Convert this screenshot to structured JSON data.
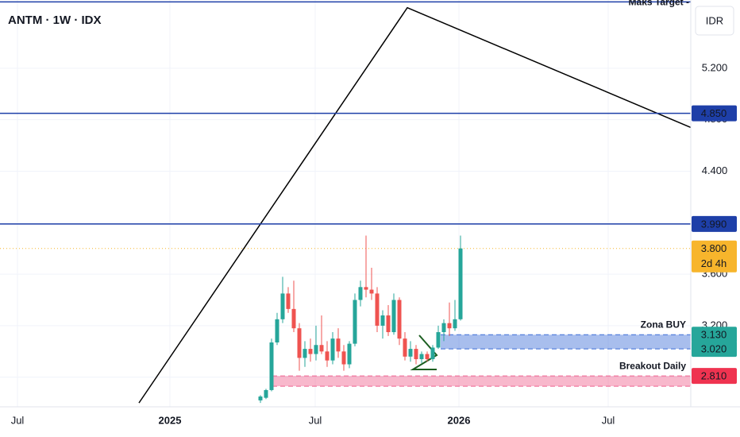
{
  "chart_data": {
    "type": "candlestick",
    "title": "ANTM · 1W · IDX",
    "currency": "IDR",
    "ylim": [
      2.57,
      5.73
    ],
    "yticks": [
      {
        "value": 5.2,
        "label": "5.200"
      },
      {
        "value": 4.8,
        "label": "4.800"
      },
      {
        "value": 4.4,
        "label": "4.400"
      },
      {
        "value": 4.0,
        "label": "4.000"
      },
      {
        "value": 3.6,
        "label": "3.600"
      },
      {
        "value": 3.2,
        "label": "3.200"
      },
      {
        "value": 2.8,
        "label": "2.800"
      }
    ],
    "x_labels": [
      "Jul",
      "2025",
      "Jul",
      "2026",
      "Jul"
    ],
    "up_color": "#26a69a",
    "down_color": "#ef5350",
    "open": [
      2.62,
      2.64,
      2.7,
      3.07,
      3.25,
      3.45,
      3.33,
      3.18,
      2.95,
      3.02,
      2.98,
      3.05,
      3.0,
      2.93,
      3.1,
      3.0,
      2.9,
      3.06,
      3.4,
      3.5,
      3.48,
      3.45,
      3.2,
      3.28,
      3.15,
      3.4,
      3.1,
      2.96,
      3.02,
      2.94,
      2.98,
      2.94,
      3.03,
      3.15,
      3.22,
      3.18,
      3.25
    ],
    "high": [
      2.66,
      2.71,
      3.1,
      3.3,
      3.58,
      3.5,
      3.55,
      3.22,
      3.08,
      3.1,
      3.2,
      3.28,
      3.08,
      3.15,
      3.18,
      3.05,
      3.08,
      3.45,
      3.55,
      3.9,
      3.65,
      3.5,
      3.32,
      3.36,
      3.45,
      3.42,
      3.15,
      3.08,
      3.05,
      3.0,
      3.0,
      3.05,
      3.2,
      3.25,
      3.38,
      3.4,
      3.9
    ],
    "low": [
      2.6,
      2.63,
      2.69,
      3.05,
      3.22,
      3.3,
      3.15,
      2.85,
      2.88,
      2.92,
      2.93,
      2.98,
      2.88,
      2.9,
      2.95,
      2.85,
      2.87,
      3.04,
      3.35,
      3.42,
      3.4,
      3.15,
      3.1,
      3.12,
      3.13,
      3.05,
      2.93,
      2.92,
      2.9,
      2.91,
      2.92,
      2.92,
      3.02,
      3.08,
      3.12,
      3.16,
      3.24
    ],
    "close": [
      2.65,
      2.7,
      3.07,
      3.25,
      3.45,
      3.33,
      3.18,
      2.95,
      3.02,
      2.98,
      3.05,
      3.0,
      2.93,
      3.1,
      3.0,
      2.9,
      3.06,
      3.4,
      3.5,
      3.48,
      3.45,
      3.2,
      3.28,
      3.15,
      3.4,
      3.1,
      2.96,
      3.02,
      2.94,
      2.98,
      2.94,
      3.03,
      3.15,
      3.22,
      3.18,
      3.25,
      3.8
    ],
    "target": {
      "name": "Maks Target -",
      "value": 5.715,
      "color": "#1e3fa8"
    },
    "levels": [
      {
        "value": 4.85,
        "label": "4.850",
        "color": "#1e3fa8"
      },
      {
        "value": 3.99,
        "label": "3.990",
        "color": "#1e3fa8"
      }
    ],
    "last_price": {
      "value": 3.8,
      "label": "3.800",
      "countdown": "2d 4h",
      "color": "#f7b52c"
    },
    "zones": [
      {
        "name": "Zona BUY",
        "top": 3.13,
        "bottom": 3.02,
        "top_label": "3.130",
        "bottom_label": "3.020",
        "color": "#3d6fd8",
        "label_color": "#26a69a"
      },
      {
        "name": "Breakout Daily",
        "top": 2.81,
        "bottom": 2.73,
        "top_label": "2.810",
        "color": "#f0628f",
        "label_color": "#ef3350"
      }
    ],
    "trendline": [
      2.6,
      5.67,
      4.74
    ]
  }
}
